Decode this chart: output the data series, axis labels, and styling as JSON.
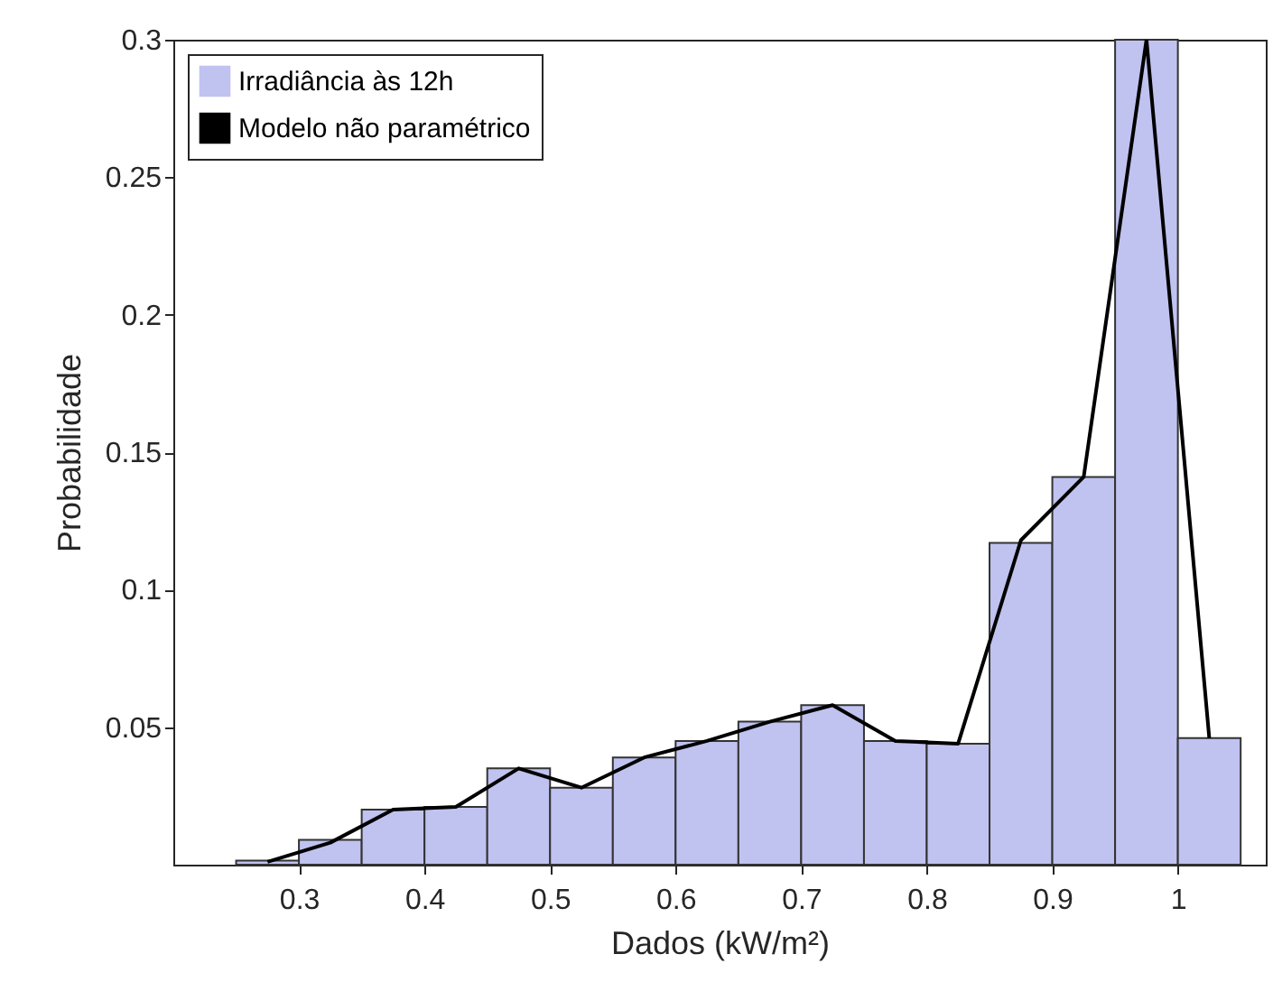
{
  "chart_data": {
    "type": "histogram",
    "xlabel": "Dados (kW/m²)",
    "ylabel": "Probabilidade",
    "bins": [
      0.25,
      0.3,
      0.35,
      0.4,
      0.45,
      0.5,
      0.55,
      0.6,
      0.65,
      0.7,
      0.75,
      0.8,
      0.85,
      0.9,
      0.95,
      1.0,
      1.05
    ],
    "series": [
      {
        "name": "Irradiância às 12h",
        "color": "#c0c3f0",
        "values": [
          0.0015,
          0.009,
          0.02,
          0.021,
          0.035,
          0.028,
          0.039,
          0.045,
          0.052,
          0.058,
          0.045,
          0.044,
          0.117,
          0.141,
          0.3,
          0.046
        ]
      },
      {
        "name": "Modelo não paramétrico",
        "type": "line",
        "color": "#000000",
        "x": [
          0.275,
          0.325,
          0.375,
          0.425,
          0.475,
          0.525,
          0.575,
          0.625,
          0.675,
          0.725,
          0.775,
          0.825,
          0.875,
          0.925,
          0.975,
          1.025
        ],
        "values": [
          0.001,
          0.008,
          0.02,
          0.021,
          0.035,
          0.028,
          0.039,
          0.045,
          0.052,
          0.058,
          0.045,
          0.044,
          0.118,
          0.141,
          0.3,
          0.046
        ]
      }
    ],
    "xlim": [
      0.2,
      1.07
    ],
    "ylim": [
      0,
      0.3
    ],
    "xticks": [
      0.3,
      0.4,
      0.5,
      0.6,
      0.7,
      0.8,
      0.9,
      1
    ],
    "yticks": [
      0.05,
      0.1,
      0.15,
      0.2,
      0.25,
      0.3
    ],
    "grid": false,
    "legend": "top left",
    "line_style": "solid"
  }
}
